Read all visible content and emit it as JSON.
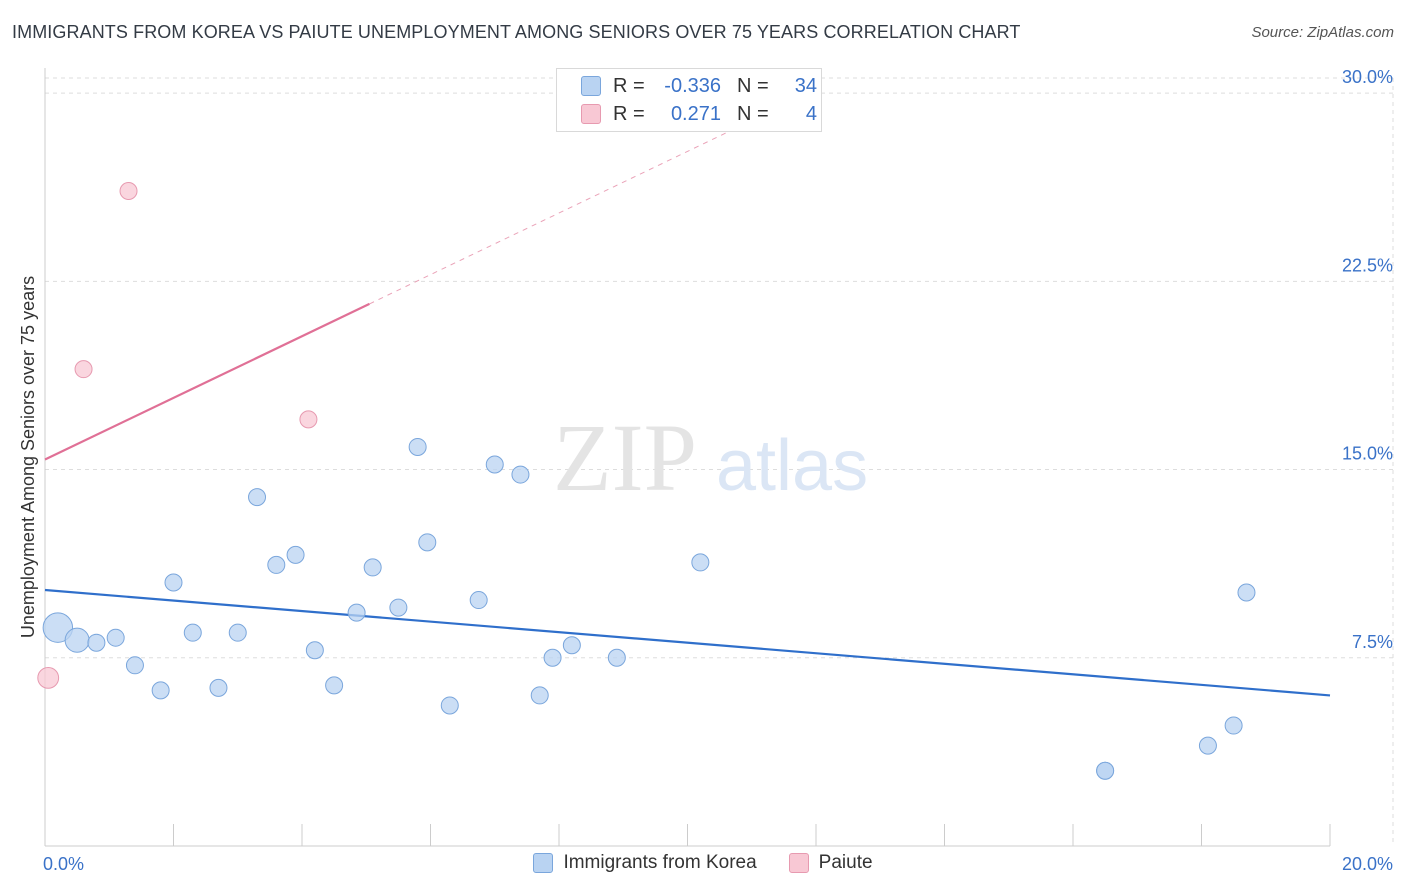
{
  "header": {
    "title": "IMMIGRANTS FROM KOREA VS PAIUTE UNEMPLOYMENT AMONG SENIORS OVER 75 YEARS CORRELATION CHART",
    "source": "Source: ZipAtlas.com"
  },
  "watermark": {
    "zip": "ZIP",
    "atlas": "atlas"
  },
  "legend": {
    "rows": [
      {
        "r_label": "R =",
        "r_value": "-0.336",
        "n_label": "N =",
        "n_value": "34"
      },
      {
        "r_label": "R =",
        "r_value": "0.271",
        "n_label": "N =",
        "n_value": "4"
      }
    ]
  },
  "colors": {
    "blue_fill": "#b9d3f2",
    "blue_stroke": "#7aa6dc",
    "blue_line": "#2f6fcb",
    "pink_fill": "#f8c8d4",
    "pink_stroke": "#e79ab0",
    "pink_line": "#e07096",
    "tick_label": "#3a72c8",
    "grid": "#dddddd"
  },
  "chart_data": {
    "type": "scatter",
    "title": "IMMIGRANTS FROM KOREA VS PAIUTE UNEMPLOYMENT AMONG SENIORS OVER 75 YEARS CORRELATION CHART",
    "xlabel": "",
    "ylabel": "Unemployment Among Seniors over 75 years",
    "xlim": [
      0,
      20
    ],
    "ylim": [
      0,
      31
    ],
    "x_tick_labels": [
      "0.0%",
      "20.0%"
    ],
    "y_ticks": [
      7.5,
      15.0,
      22.5,
      30.0
    ],
    "y_tick_labels": [
      "7.5%",
      "15.0%",
      "22.5%",
      "30.0%"
    ],
    "grid": true,
    "series": [
      {
        "name": "Immigrants from Korea",
        "color": "#b9d3f2",
        "points": [
          {
            "x": 0.2,
            "y": 8.7,
            "size": 3
          },
          {
            "x": 0.5,
            "y": 8.2,
            "size": 2
          },
          {
            "x": 0.8,
            "y": 8.1,
            "size": 1
          },
          {
            "x": 1.1,
            "y": 8.3,
            "size": 1
          },
          {
            "x": 1.4,
            "y": 7.2,
            "size": 1
          },
          {
            "x": 1.8,
            "y": 6.2,
            "size": 1
          },
          {
            "x": 2.0,
            "y": 10.5,
            "size": 1
          },
          {
            "x": 2.3,
            "y": 8.5,
            "size": 1
          },
          {
            "x": 2.7,
            "y": 6.3,
            "size": 1
          },
          {
            "x": 3.0,
            "y": 8.5,
            "size": 1
          },
          {
            "x": 3.3,
            "y": 13.9,
            "size": 1
          },
          {
            "x": 3.6,
            "y": 11.2,
            "size": 1
          },
          {
            "x": 3.9,
            "y": 11.6,
            "size": 1
          },
          {
            "x": 4.2,
            "y": 7.8,
            "size": 1
          },
          {
            "x": 4.5,
            "y": 6.4,
            "size": 1
          },
          {
            "x": 4.85,
            "y": 9.3,
            "size": 1
          },
          {
            "x": 5.1,
            "y": 11.1,
            "size": 1
          },
          {
            "x": 5.5,
            "y": 9.5,
            "size": 1
          },
          {
            "x": 5.8,
            "y": 15.9,
            "size": 1
          },
          {
            "x": 5.95,
            "y": 12.1,
            "size": 1
          },
          {
            "x": 6.3,
            "y": 5.6,
            "size": 1
          },
          {
            "x": 6.75,
            "y": 9.8,
            "size": 1
          },
          {
            "x": 7.0,
            "y": 15.2,
            "size": 1
          },
          {
            "x": 7.4,
            "y": 14.8,
            "size": 1
          },
          {
            "x": 7.7,
            "y": 6.0,
            "size": 1
          },
          {
            "x": 7.9,
            "y": 7.5,
            "size": 1
          },
          {
            "x": 8.2,
            "y": 8.0,
            "size": 1
          },
          {
            "x": 8.9,
            "y": 7.5,
            "size": 1
          },
          {
            "x": 10.2,
            "y": 11.3,
            "size": 1
          },
          {
            "x": 16.5,
            "y": 3.0,
            "size": 1
          },
          {
            "x": 16.5,
            "y": 3.0,
            "size": 1
          },
          {
            "x": 18.1,
            "y": 4.0,
            "size": 1
          },
          {
            "x": 18.5,
            "y": 4.8,
            "size": 1
          },
          {
            "x": 18.7,
            "y": 10.1,
            "size": 1
          }
        ],
        "trend": {
          "x0": 0,
          "y0": 10.2,
          "x1": 20,
          "y1": 6.0
        }
      },
      {
        "name": "Paiute",
        "color": "#f8c8d4",
        "points": [
          {
            "x": 0.05,
            "y": 6.7,
            "size": 1.5
          },
          {
            "x": 0.6,
            "y": 19.0,
            "size": 1
          },
          {
            "x": 1.3,
            "y": 26.1,
            "size": 1
          },
          {
            "x": 4.1,
            "y": 17.0,
            "size": 1
          }
        ],
        "trend": {
          "x0": 0,
          "y0": 15.4,
          "x1": 5.05,
          "y1": 21.6,
          "dash_to_x": 11.0
        }
      }
    ]
  }
}
